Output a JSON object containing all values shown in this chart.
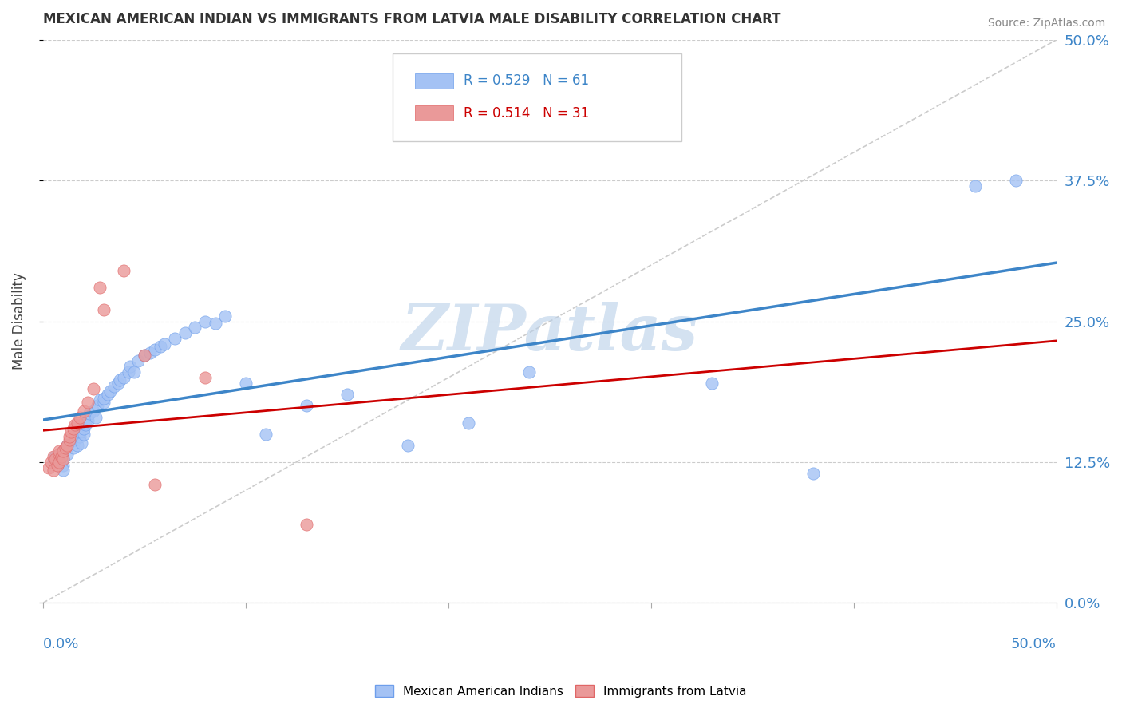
{
  "title": "MEXICAN AMERICAN INDIAN VS IMMIGRANTS FROM LATVIA MALE DISABILITY CORRELATION CHART",
  "source": "Source: ZipAtlas.com",
  "ylabel": "Male Disability",
  "r_blue": 0.529,
  "n_blue": 61,
  "r_pink": 0.514,
  "n_pink": 31,
  "color_blue_fill": "#a4c2f4",
  "color_blue_edge": "#6d9eeb",
  "color_pink_fill": "#ea9999",
  "color_pink_edge": "#e06666",
  "color_blue_line": "#3d85c8",
  "color_pink_line": "#cc0000",
  "color_ref_line": "#cccccc",
  "watermark_text": "ZIPatlas",
  "watermark_color": "#b8cfe8",
  "ytick_labels": [
    "0.0%",
    "12.5%",
    "25.0%",
    "37.5%",
    "50.0%"
  ],
  "ytick_values": [
    0.0,
    0.125,
    0.25,
    0.375,
    0.5
  ],
  "background_color": "#ffffff",
  "blue_scatter_x": [
    0.005,
    0.006,
    0.007,
    0.008,
    0.009,
    0.01,
    0.01,
    0.01,
    0.01,
    0.012,
    0.012,
    0.015,
    0.016,
    0.017,
    0.018,
    0.018,
    0.019,
    0.02,
    0.02,
    0.02,
    0.021,
    0.022,
    0.023,
    0.025,
    0.026,
    0.027,
    0.028,
    0.03,
    0.03,
    0.032,
    0.033,
    0.035,
    0.037,
    0.038,
    0.04,
    0.042,
    0.043,
    0.045,
    0.047,
    0.05,
    0.053,
    0.055,
    0.058,
    0.06,
    0.065,
    0.07,
    0.075,
    0.08,
    0.085,
    0.09,
    0.1,
    0.11,
    0.13,
    0.15,
    0.18,
    0.21,
    0.24,
    0.33,
    0.38,
    0.46,
    0.48
  ],
  "blue_scatter_y": [
    0.125,
    0.13,
    0.125,
    0.128,
    0.132,
    0.135,
    0.128,
    0.122,
    0.118,
    0.14,
    0.132,
    0.138,
    0.145,
    0.14,
    0.148,
    0.152,
    0.142,
    0.15,
    0.155,
    0.16,
    0.158,
    0.162,
    0.168,
    0.17,
    0.165,
    0.175,
    0.18,
    0.178,
    0.182,
    0.185,
    0.188,
    0.192,
    0.195,
    0.198,
    0.2,
    0.205,
    0.21,
    0.205,
    0.215,
    0.22,
    0.222,
    0.225,
    0.228,
    0.23,
    0.235,
    0.24,
    0.245,
    0.25,
    0.248,
    0.255,
    0.195,
    0.15,
    0.175,
    0.185,
    0.14,
    0.16,
    0.205,
    0.195,
    0.115,
    0.37,
    0.375
  ],
  "pink_scatter_x": [
    0.003,
    0.004,
    0.005,
    0.005,
    0.006,
    0.007,
    0.008,
    0.008,
    0.008,
    0.009,
    0.01,
    0.01,
    0.011,
    0.012,
    0.013,
    0.013,
    0.014,
    0.015,
    0.016,
    0.017,
    0.018,
    0.02,
    0.022,
    0.025,
    0.028,
    0.03,
    0.04,
    0.05,
    0.055,
    0.08,
    0.13
  ],
  "pink_scatter_y": [
    0.12,
    0.125,
    0.118,
    0.13,
    0.128,
    0.122,
    0.132,
    0.125,
    0.135,
    0.13,
    0.128,
    0.135,
    0.138,
    0.14,
    0.145,
    0.148,
    0.152,
    0.155,
    0.158,
    0.16,
    0.165,
    0.17,
    0.178,
    0.19,
    0.28,
    0.26,
    0.295,
    0.22,
    0.105,
    0.2,
    0.07
  ]
}
